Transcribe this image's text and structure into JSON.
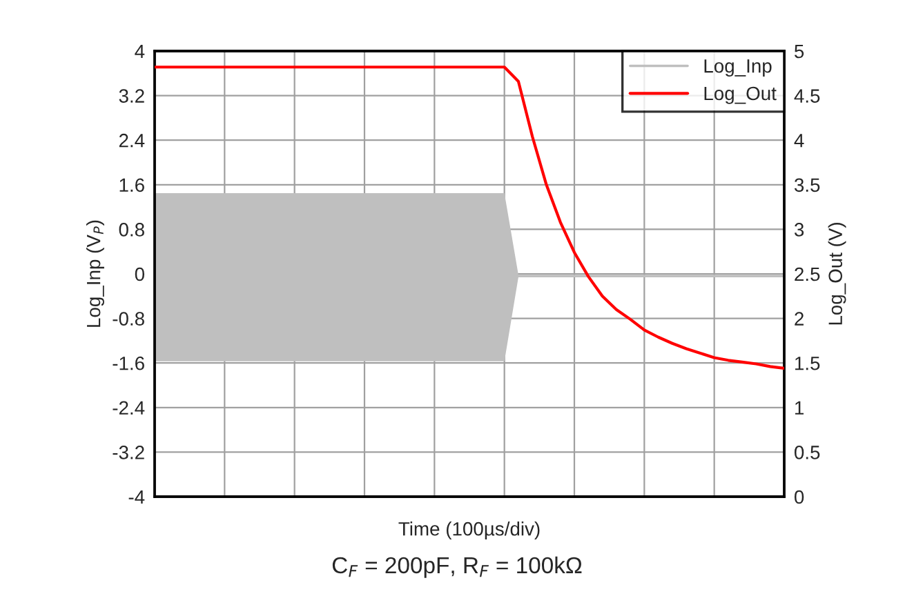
{
  "chart_data": {
    "type": "line",
    "xlabel": "Time (100µs/div)",
    "ylabel": "Log_Inp (V$_{P}$)",
    "y2label": "Log_Out (V)",
    "annotations": [
      "C$_{F}$ = 200pF, R$_{F}$ = 100kΩ"
    ],
    "categories": [
      null,
      null,
      null,
      null,
      null,
      null,
      null,
      null,
      null,
      null,
      null,
      null,
      null,
      null,
      null,
      null,
      null,
      null,
      null,
      null,
      null,
      null,
      null,
      null,
      null,
      null,
      null,
      null,
      null,
      null,
      null,
      null,
      null,
      null,
      null,
      null,
      null,
      null,
      null,
      null,
      null,
      null,
      null,
      null,
      null,
      null
    ],
    "ylim": [
      -4,
      4
    ],
    "yticks": [
      -4,
      -3.2,
      -2.4,
      -1.6,
      -0.8,
      0,
      0.8,
      1.6,
      2.4,
      3.2,
      4
    ],
    "y2lim": [
      0,
      5
    ],
    "y2ticks": [
      0,
      0.5,
      1,
      1.5,
      2,
      2.5,
      3,
      3.5,
      4,
      4.5,
      5
    ],
    "grid": true,
    "legend": "top right",
    "series": [
      {
        "name": "Log_Inp",
        "color": "#bfbfbf",
        "values": [
          -0.04,
          -0.04,
          -0.04,
          -0.04,
          -0.04,
          -0.04,
          -0.04,
          -0.04,
          -0.04,
          -0.04,
          -0.04,
          -0.04,
          -0.04,
          -0.04,
          -0.04,
          -0.04,
          -0.04,
          -0.04,
          -0.04,
          -0.04,
          -0.04,
          -0.04,
          -0.04,
          -0.04,
          -0.04,
          -0.04,
          -0.04,
          -0.04,
          -0.04,
          -0.04,
          -0.04,
          -0.04,
          -0.04,
          -0.04,
          -0.04,
          -0.04,
          -0.04,
          -0.04,
          -0.04,
          -0.04,
          -0.04,
          -0.04,
          -0.04,
          -0.04,
          -0.04,
          -0.04
        ],
        "lower": [
          -1.57,
          -1.57,
          -1.57,
          -1.57,
          -1.57,
          -1.57,
          -1.57,
          -1.57,
          -1.57,
          -1.57,
          -1.57,
          -1.57,
          -1.57,
          -1.57,
          -1.57,
          -1.57,
          -1.57,
          -1.57,
          -1.57,
          -1.57,
          -1.57,
          -1.57,
          -1.57,
          -1.57,
          -1.57,
          -1.57,
          -0.06,
          -0.06,
          -0.06,
          -0.06,
          -0.06,
          -0.06,
          -0.06,
          -0.06,
          -0.06,
          -0.06,
          -0.06,
          -0.06,
          -0.06,
          -0.06,
          -0.06,
          -0.06,
          -0.06,
          -0.06,
          -0.06,
          -0.06
        ],
        "upper": [
          1.45,
          1.45,
          1.45,
          1.45,
          1.45,
          1.45,
          1.45,
          1.45,
          1.45,
          1.45,
          1.45,
          1.45,
          1.45,
          1.45,
          1.45,
          1.45,
          1.45,
          1.45,
          1.45,
          1.45,
          1.45,
          1.45,
          1.45,
          1.45,
          1.45,
          1.45,
          -0.02,
          -0.02,
          -0.02,
          -0.02,
          -0.02,
          -0.02,
          -0.02,
          -0.02,
          -0.02,
          -0.02,
          -0.02,
          -0.02,
          -0.02,
          -0.02,
          -0.02,
          -0.02,
          -0.02,
          -0.02,
          -0.02,
          -0.02
        ]
      },
      {
        "name": "Log_Out",
        "color": "#ff0000",
        "axis": "y2",
        "values": [
          4.82,
          4.82,
          4.82,
          4.82,
          4.82,
          4.82,
          4.82,
          4.82,
          4.82,
          4.82,
          4.82,
          4.82,
          4.82,
          4.82,
          4.82,
          4.82,
          4.82,
          4.82,
          4.82,
          4.82,
          4.82,
          4.82,
          4.82,
          4.82,
          4.82,
          4.82,
          4.66,
          4.04,
          3.5,
          3.08,
          2.74,
          2.47,
          2.25,
          2.1,
          1.99,
          1.87,
          1.79,
          1.72,
          1.66,
          1.61,
          1.56,
          1.53,
          1.51,
          1.49,
          1.46,
          1.44
        ]
      }
    ]
  }
}
